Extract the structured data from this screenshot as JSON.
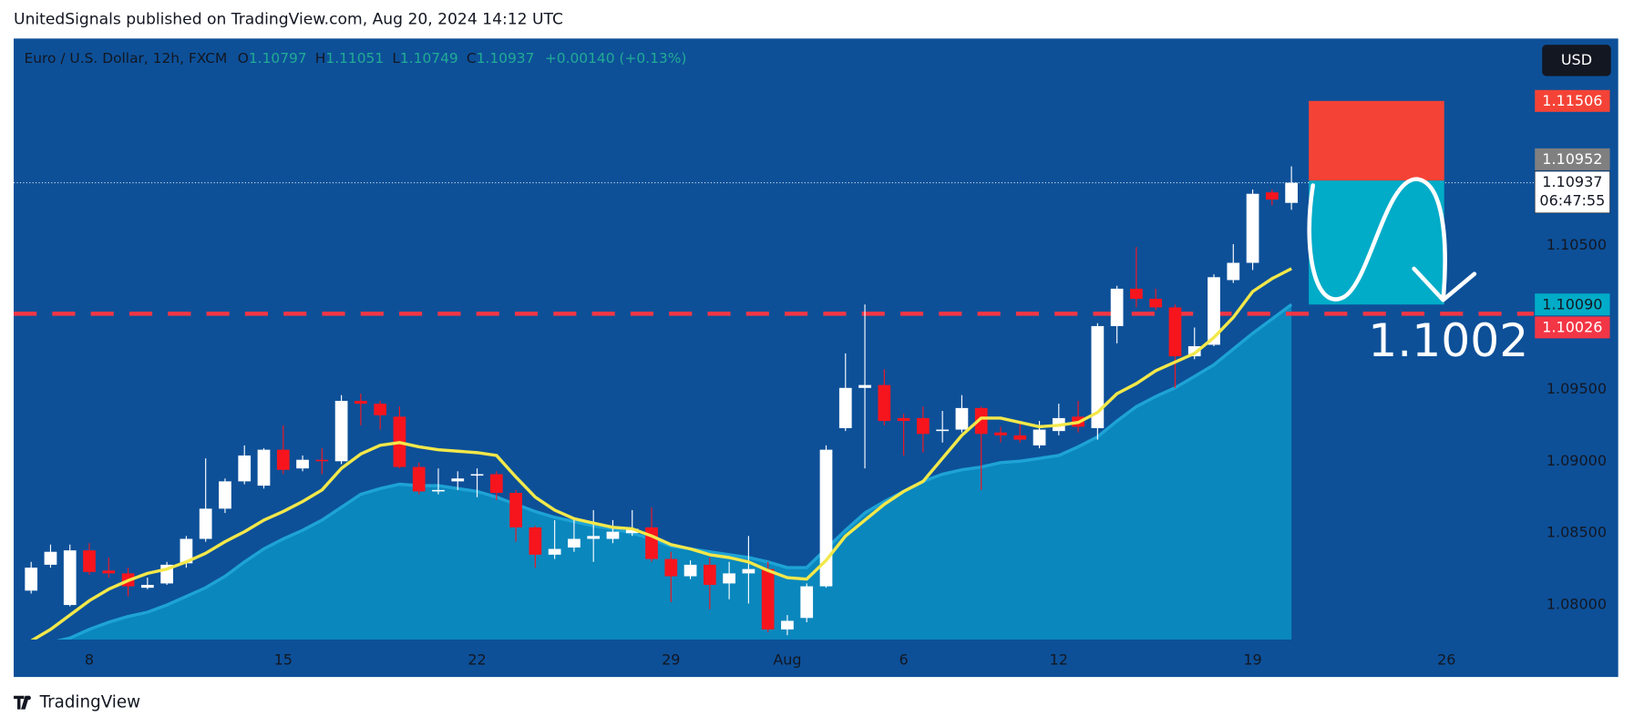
{
  "header": "UnitedSignals published on TradingView.com, Aug 20, 2024 14:12 UTC",
  "footer": "TradingView",
  "currency_button": "USD",
  "chart_data": {
    "type": "candlestick",
    "symbol": "Euro / U.S. Dollar, 12h, FXCM",
    "ohlc_letters": [
      "O",
      "H",
      "L",
      "C"
    ],
    "change": "+0.00140 (+0.13%)",
    "open": [
      1.081,
      1.0828,
      1.08,
      1.0838,
      1.0824,
      1.0822,
      1.0812,
      1.0815,
      1.0829,
      1.0846,
      1.0867,
      1.0886,
      1.0883,
      1.0908,
      1.0895,
      1.0901,
      1.09,
      1.0942,
      1.094,
      1.0931,
      1.0896,
      1.0879,
      1.0886,
      1.089,
      1.0891,
      1.0878,
      1.0854,
      1.0835,
      1.084,
      1.0846,
      1.0846,
      1.085,
      1.0854,
      1.0832,
      1.082,
      1.0828,
      1.0815,
      1.0822,
      1.0825,
      1.0783,
      1.0791,
      1.0813,
      1.0923,
      1.0951,
      1.0953,
      1.093,
      1.093,
      1.0921,
      1.0922,
      1.0937,
      1.092,
      1.0918,
      1.0911,
      1.0921,
      1.0931,
      1.0923,
      1.0994,
      1.102,
      1.1013,
      1.1007,
      1.0973,
      1.0981,
      1.1026,
      1.1038,
      1.1087,
      1.10797
    ],
    "high": [
      1.083,
      1.0842,
      1.0842,
      1.0843,
      1.0833,
      1.0826,
      1.0819,
      1.083,
      1.0848,
      1.0902,
      1.0888,
      1.0911,
      1.0909,
      1.0925,
      1.0904,
      1.0909,
      1.0946,
      1.0947,
      1.0942,
      1.0938,
      1.0899,
      1.0895,
      1.0893,
      1.0895,
      1.0893,
      1.088,
      1.0855,
      1.0859,
      1.086,
      1.0866,
      1.0859,
      1.0866,
      1.0868,
      1.0837,
      1.0831,
      1.0833,
      1.083,
      1.0848,
      1.083,
      1.0793,
      1.0815,
      1.0911,
      1.0975,
      1.1009,
      1.0964,
      1.0933,
      1.0938,
      1.0935,
      1.0946,
      1.0938,
      1.0924,
      1.0928,
      1.0928,
      1.094,
      1.0942,
      1.0996,
      1.1022,
      1.1049,
      1.102,
      1.1009,
      1.0993,
      1.103,
      1.1051,
      1.1089,
      1.1089,
      1.11051
    ],
    "low": [
      1.0808,
      1.0826,
      1.0799,
      1.0821,
      1.0819,
      1.0806,
      1.0811,
      1.0814,
      1.0826,
      1.0844,
      1.0864,
      1.0884,
      1.0881,
      1.0891,
      1.0893,
      1.0891,
      1.0898,
      1.0925,
      1.0922,
      1.0895,
      1.0877,
      1.0877,
      1.088,
      1.0875,
      1.0873,
      1.0844,
      1.0826,
      1.0832,
      1.0837,
      1.083,
      1.0843,
      1.0848,
      1.083,
      1.0802,
      1.0818,
      1.0797,
      1.0804,
      1.0801,
      1.0781,
      1.0779,
      1.0788,
      1.0812,
      1.0921,
      1.0895,
      1.0925,
      1.0904,
      1.0906,
      1.0913,
      1.092,
      1.088,
      1.0913,
      1.0913,
      1.0909,
      1.0918,
      1.092,
      1.0915,
      1.0982,
      1.1007,
      1.1005,
      1.0951,
      1.0971,
      1.098,
      1.1024,
      1.1033,
      1.1078,
      1.10749
    ],
    "close": [
      1.0826,
      1.0837,
      1.0838,
      1.0823,
      1.0822,
      1.0813,
      1.0814,
      1.0828,
      1.0846,
      1.0867,
      1.0886,
      1.0904,
      1.0908,
      1.0894,
      1.0901,
      1.09,
      1.0942,
      1.094,
      1.0932,
      1.0896,
      1.0879,
      1.088,
      1.0888,
      1.0891,
      1.0878,
      1.0854,
      1.0835,
      1.0839,
      1.0846,
      1.0848,
      1.0851,
      1.0853,
      1.0832,
      1.082,
      1.0828,
      1.0814,
      1.0822,
      1.0825,
      1.0783,
      1.0789,
      1.0813,
      1.0908,
      1.0951,
      1.0953,
      1.0928,
      1.0928,
      1.0919,
      1.0922,
      1.0937,
      1.0919,
      1.0918,
      1.0915,
      1.0922,
      1.093,
      1.0924,
      1.0994,
      1.102,
      1.1013,
      1.1007,
      1.0973,
      1.098,
      1.1028,
      1.1038,
      1.1086,
      1.1082,
      1.10937
    ],
    "up_color": "#ffffff",
    "down_color": "#f7151d",
    "series": [
      {
        "kind": "line",
        "color": "#f3e84a",
        "values": [
          1.0775,
          1.0783,
          1.0793,
          1.0803,
          1.0811,
          1.0817,
          1.0822,
          1.0825,
          1.083,
          1.0836,
          1.0844,
          1.0851,
          1.0859,
          1.0865,
          1.0872,
          1.088,
          1.0895,
          1.0905,
          1.0911,
          1.0913,
          1.091,
          1.0908,
          1.0907,
          1.0906,
          1.0904,
          1.0889,
          1.0875,
          1.0866,
          1.086,
          1.0857,
          1.0854,
          1.0853,
          1.0848,
          1.0842,
          1.0839,
          1.0835,
          1.0833,
          1.083,
          1.0824,
          1.0819,
          1.0818,
          1.0831,
          1.0848,
          1.0859,
          1.087,
          1.0879,
          1.0886,
          1.0902,
          1.0918,
          1.093,
          1.093,
          1.0927,
          1.0924,
          1.0925,
          1.0927,
          1.0934,
          1.0947,
          1.0954,
          1.0963,
          1.0969,
          1.0975,
          1.0986,
          1.1,
          1.1018,
          1.1027,
          1.1034
        ]
      },
      {
        "kind": "area",
        "color": "#0a87bd",
        "values": [
          1.0772,
          1.0774,
          1.0777,
          1.0783,
          1.0788,
          1.0792,
          1.0795,
          1.08,
          1.0806,
          1.0812,
          1.082,
          1.083,
          1.0839,
          1.0846,
          1.0852,
          1.0859,
          1.0868,
          1.0877,
          1.0881,
          1.0884,
          1.0883,
          1.0883,
          1.0881,
          1.0879,
          1.0875,
          1.087,
          1.0865,
          1.0861,
          1.0858,
          1.0855,
          1.0853,
          1.085,
          1.0846,
          1.0841,
          1.0839,
          1.0837,
          1.0835,
          1.0833,
          1.083,
          1.0826,
          1.0826,
          1.0839,
          1.0852,
          1.0864,
          1.0872,
          1.0879,
          1.0886,
          1.0891,
          1.0894,
          1.0896,
          1.0899,
          1.09,
          1.0902,
          1.0904,
          1.091,
          1.0917,
          1.0928,
          1.0938,
          1.0945,
          1.0951,
          1.0959,
          1.0967,
          1.0978,
          1.0989,
          1.0999,
          1.1009
        ]
      }
    ],
    "ylim": [
      1.0776,
      1.1194
    ],
    "yticks": [
      {
        "value": 1.08,
        "label": "1.08000"
      },
      {
        "value": 1.085,
        "label": "1.08500"
      },
      {
        "value": 1.09,
        "label": "1.09000"
      },
      {
        "value": 1.095,
        "label": "1.09500"
      },
      {
        "value": 1.105,
        "label": "1.10500"
      }
    ],
    "xlim": [
      -0.9,
      77.5
    ],
    "xticks": [
      {
        "value": 3,
        "label": "8"
      },
      {
        "value": 13,
        "label": "15"
      },
      {
        "value": 23,
        "label": "22"
      },
      {
        "value": 33,
        "label": "29"
      },
      {
        "value": 39,
        "label": "Aug"
      },
      {
        "value": 45,
        "label": "6"
      },
      {
        "value": 53,
        "label": "12"
      },
      {
        "value": 63,
        "label": "19"
      },
      {
        "value": 73,
        "label": "26"
      }
    ],
    "countdown": "06:47:55",
    "horizontal_line": {
      "value": 1.10026,
      "color": "#f23645"
    },
    "position": {
      "entry": 1.10952,
      "stop": 1.11506,
      "target": {
        "value": 1.1009,
        "label": "1.10090"
      },
      "stop_color": "#f44336",
      "target_color": "#00acc8",
      "entry_color": "#808080"
    },
    "annotation": "1.1002"
  }
}
